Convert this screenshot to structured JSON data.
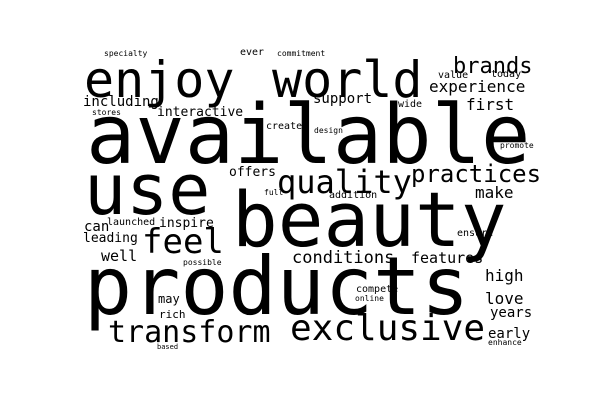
{
  "word_cloud": {
    "background_color": "#ffffff",
    "text_color": "#000000",
    "words": [
      {
        "id": "available",
        "text": "available"
      },
      {
        "id": "products",
        "text": "products"
      },
      {
        "id": "beauty",
        "text": "beauty"
      },
      {
        "id": "use",
        "text": "use"
      },
      {
        "id": "enjoy",
        "text": "enjoy"
      },
      {
        "id": "world",
        "text": "world"
      },
      {
        "id": "exclusive",
        "text": "exclusive"
      },
      {
        "id": "transform",
        "text": "transform"
      },
      {
        "id": "quality",
        "text": "quality"
      },
      {
        "id": "feel",
        "text": "feel"
      },
      {
        "id": "practices",
        "text": "practices"
      },
      {
        "id": "conditions",
        "text": "conditions"
      },
      {
        "id": "brands",
        "text": "brands"
      },
      {
        "id": "experience",
        "text": "experience"
      },
      {
        "id": "support",
        "text": "support"
      },
      {
        "id": "first",
        "text": "first"
      },
      {
        "id": "make",
        "text": "make"
      },
      {
        "id": "features",
        "text": "features"
      },
      {
        "id": "well",
        "text": "well"
      },
      {
        "id": "high",
        "text": "high"
      },
      {
        "id": "love",
        "text": "love"
      },
      {
        "id": "years",
        "text": "years"
      },
      {
        "id": "early",
        "text": "early"
      },
      {
        "id": "including",
        "text": "including"
      },
      {
        "id": "interactive",
        "text": "interactive"
      },
      {
        "id": "offers",
        "text": "offers"
      },
      {
        "id": "can",
        "text": "can"
      },
      {
        "id": "leading",
        "text": "leading"
      },
      {
        "id": "inspire",
        "text": "inspire"
      },
      {
        "id": "may",
        "text": "may"
      },
      {
        "id": "rich",
        "text": "rich"
      },
      {
        "id": "compete",
        "text": "compete"
      },
      {
        "id": "ensure",
        "text": "ensure"
      },
      {
        "id": "value",
        "text": "value"
      },
      {
        "id": "today",
        "text": "today"
      },
      {
        "id": "wide",
        "text": "wide"
      },
      {
        "id": "create",
        "text": "create"
      },
      {
        "id": "launched",
        "text": "launched"
      },
      {
        "id": "addition",
        "text": "addition"
      },
      {
        "id": "ever",
        "text": "ever"
      },
      {
        "id": "stores",
        "text": "stores"
      },
      {
        "id": "specialty",
        "text": "specialty"
      },
      {
        "id": "commitment",
        "text": "commitment"
      },
      {
        "id": "design",
        "text": "design"
      },
      {
        "id": "promote",
        "text": "promote"
      },
      {
        "id": "full",
        "text": "full"
      },
      {
        "id": "possible",
        "text": "possible"
      },
      {
        "id": "online",
        "text": "online"
      },
      {
        "id": "based",
        "text": "based"
      },
      {
        "id": "enhance",
        "text": "enhance"
      }
    ]
  }
}
